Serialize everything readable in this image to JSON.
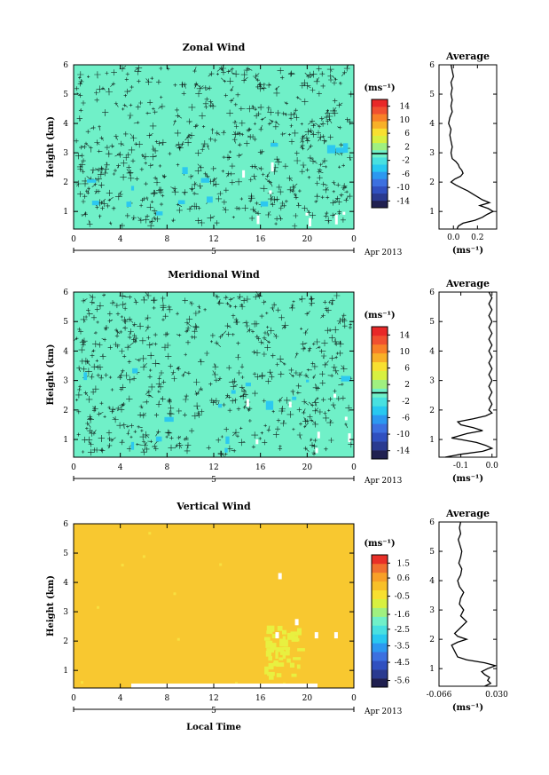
{
  "shared": {
    "month_label": "Apr 2013",
    "day_label": "5",
    "x_tick_labels": [
      "0",
      "4",
      "8",
      "12",
      "16",
      "20",
      "0"
    ],
    "height_tick_labels": [
      "1",
      "2",
      "3",
      "4",
      "5",
      "6"
    ],
    "ylabel": "Height (km)",
    "xlabel": "Local Time",
    "units_label": "(ms⁻¹)",
    "avg_title": "Average",
    "avg_unit": "(ms⁻¹)"
  },
  "chart_data": [
    {
      "id": "zonal",
      "type": "heatmap",
      "title": "Zonal Wind",
      "x_range": [
        0,
        24
      ],
      "y_range": [
        0.4,
        6
      ],
      "dominant_value_range": [
        -2,
        2
      ],
      "contour_lines": true,
      "colorbar_ticks": [
        "14",
        "10",
        "6",
        "2",
        "-2",
        "-6",
        "-10",
        "-14"
      ],
      "colorbar_range": [
        -16,
        16
      ],
      "colorbar_marker": 0,
      "colors": [
        "#202050",
        "#2a3a90",
        "#3050c0",
        "#3c70e0",
        "#2c98f0",
        "#28c8f0",
        "#48e0e0",
        "#70f0c8",
        "#a0f080",
        "#d8f040",
        "#f8e030",
        "#f8b028",
        "#f88028",
        "#f05030",
        "#e82828"
      ],
      "field_color": "#70f0c8",
      "avg_profile": {
        "x_ticks": [
          "0.0",
          "0.2"
        ],
        "xlim": [
          -0.12,
          0.36
        ],
        "tick_values": [
          0,
          0.2
        ],
        "points": [
          [
            0.03,
            0.4
          ],
          [
            0.04,
            0.5
          ],
          [
            0.08,
            0.6
          ],
          [
            0.18,
            0.7
          ],
          [
            0.24,
            0.8
          ],
          [
            0.28,
            0.9
          ],
          [
            0.33,
            1.0
          ],
          [
            0.29,
            1.1
          ],
          [
            0.22,
            1.2
          ],
          [
            0.3,
            1.3
          ],
          [
            0.24,
            1.4
          ],
          [
            0.2,
            1.5
          ],
          [
            0.16,
            1.6
          ],
          [
            0.12,
            1.7
          ],
          [
            0.07,
            1.8
          ],
          [
            0.02,
            1.9
          ],
          [
            -0.02,
            2.0
          ],
          [
            0.01,
            2.1
          ],
          [
            0.06,
            2.2
          ],
          [
            0.08,
            2.3
          ],
          [
            0.07,
            2.4
          ],
          [
            0.05,
            2.5
          ],
          [
            0.04,
            2.6
          ],
          [
            0.02,
            2.7
          ],
          [
            -0.01,
            2.8
          ],
          [
            -0.02,
            3.0
          ],
          [
            -0.01,
            3.2
          ],
          [
            -0.02,
            3.4
          ],
          [
            -0.03,
            3.6
          ],
          [
            -0.02,
            3.8
          ],
          [
            -0.04,
            4.0
          ],
          [
            -0.03,
            4.2
          ],
          [
            -0.01,
            4.4
          ],
          [
            -0.02,
            4.6
          ],
          [
            -0.01,
            4.8
          ],
          [
            -0.02,
            5.0
          ],
          [
            -0.01,
            5.2
          ],
          [
            -0.02,
            5.4
          ],
          [
            0.0,
            5.6
          ],
          [
            -0.01,
            5.8
          ],
          [
            -0.02,
            6.0
          ]
        ]
      }
    },
    {
      "id": "meridional",
      "type": "heatmap",
      "title": "Meridional Wind",
      "x_range": [
        0,
        24
      ],
      "y_range": [
        0.4,
        6
      ],
      "dominant_value_range": [
        -2,
        2
      ],
      "contour_lines": true,
      "colorbar_ticks": [
        "14",
        "10",
        "6",
        "2",
        "-2",
        "-6",
        "-10",
        "-14"
      ],
      "colorbar_range": [
        -16,
        16
      ],
      "colorbar_marker": 0,
      "colors": [
        "#202050",
        "#2a3a90",
        "#3050c0",
        "#3c70e0",
        "#2c98f0",
        "#28c8f0",
        "#48e0e0",
        "#70f0c8",
        "#a0f080",
        "#d8f040",
        "#f8e030",
        "#f8b028",
        "#f88028",
        "#f05030",
        "#e82828"
      ],
      "field_color": "#70f0c8",
      "avg_profile": {
        "x_ticks": [
          "-0.1",
          "0.0"
        ],
        "xlim": [
          -0.17,
          0.015
        ],
        "tick_values": [
          -0.1,
          0.0
        ],
        "points": [
          [
            -0.15,
            0.4
          ],
          [
            -0.1,
            0.5
          ],
          [
            -0.03,
            0.6
          ],
          [
            0.0,
            0.7
          ],
          [
            -0.02,
            0.8
          ],
          [
            -0.05,
            0.9
          ],
          [
            -0.1,
            1.0
          ],
          [
            -0.13,
            1.05
          ],
          [
            -0.08,
            1.2
          ],
          [
            -0.03,
            1.3
          ],
          [
            -0.06,
            1.4
          ],
          [
            -0.1,
            1.5
          ],
          [
            -0.11,
            1.6
          ],
          [
            -0.06,
            1.7
          ],
          [
            -0.02,
            1.8
          ],
          [
            0.0,
            1.9
          ],
          [
            -0.01,
            2.0
          ],
          [
            0.0,
            2.2
          ],
          [
            -0.01,
            2.4
          ],
          [
            0.0,
            2.6
          ],
          [
            -0.01,
            2.8
          ],
          [
            0.0,
            3.0
          ],
          [
            -0.01,
            3.2
          ],
          [
            0.0,
            3.4
          ],
          [
            -0.01,
            3.6
          ],
          [
            0.0,
            3.8
          ],
          [
            -0.01,
            4.0
          ],
          [
            0.0,
            4.2
          ],
          [
            -0.01,
            4.4
          ],
          [
            0.0,
            4.6
          ],
          [
            -0.01,
            4.8
          ],
          [
            0.0,
            5.0
          ],
          [
            -0.01,
            5.2
          ],
          [
            0.0,
            5.4
          ],
          [
            -0.01,
            5.6
          ],
          [
            0.0,
            5.8
          ],
          [
            -0.01,
            6.0
          ]
        ]
      }
    },
    {
      "id": "vertical",
      "type": "heatmap",
      "title": "Vertical Wind",
      "x_range": [
        0,
        24
      ],
      "y_range": [
        0.4,
        6
      ],
      "dominant_value_range": [
        -0.6,
        -0.2
      ],
      "contour_lines": false,
      "colorbar_ticks": [
        "1.5",
        "0.6",
        "-0.5",
        "-1.6",
        "-2.5",
        "-3.5",
        "-4.5",
        "-5.6"
      ],
      "colorbar_range": [
        -6,
        2
      ],
      "colors": [
        "#202050",
        "#2a3a90",
        "#3050c0",
        "#3c70e0",
        "#2c98f0",
        "#28c8f0",
        "#48e0e0",
        "#70f0c8",
        "#a0f080",
        "#d8f040",
        "#f8e030",
        "#f8c028",
        "#f8a028",
        "#f07030",
        "#e83028"
      ],
      "field_color": "#f8c830",
      "avg_profile": {
        "x_ticks": [
          "-0.066",
          "0.030"
        ],
        "xlim": [
          -0.066,
          0.03
        ],
        "tick_values": [
          -0.066,
          0.03
        ],
        "points": [
          [
            0.01,
            0.4
          ],
          [
            0.02,
            0.5
          ],
          [
            0.015,
            0.6
          ],
          [
            0.018,
            0.7
          ],
          [
            0.01,
            0.8
          ],
          [
            0.005,
            0.9
          ],
          [
            0.015,
            1.0
          ],
          [
            0.028,
            1.1
          ],
          [
            0.01,
            1.2
          ],
          [
            -0.02,
            1.3
          ],
          [
            -0.035,
            1.4
          ],
          [
            -0.04,
            1.6
          ],
          [
            -0.045,
            1.8
          ],
          [
            -0.035,
            1.9
          ],
          [
            -0.02,
            2.0
          ],
          [
            -0.035,
            2.1
          ],
          [
            -0.04,
            2.2
          ],
          [
            -0.03,
            2.4
          ],
          [
            -0.02,
            2.6
          ],
          [
            -0.03,
            2.8
          ],
          [
            -0.025,
            3.0
          ],
          [
            -0.032,
            3.2
          ],
          [
            -0.03,
            3.4
          ],
          [
            -0.025,
            3.6
          ],
          [
            -0.032,
            3.8
          ],
          [
            -0.035,
            4.0
          ],
          [
            -0.03,
            4.2
          ],
          [
            -0.028,
            4.4
          ],
          [
            -0.033,
            4.6
          ],
          [
            -0.03,
            4.8
          ],
          [
            -0.028,
            5.0
          ],
          [
            -0.031,
            5.2
          ],
          [
            -0.034,
            5.4
          ],
          [
            -0.03,
            5.6
          ],
          [
            -0.032,
            5.8
          ],
          [
            -0.03,
            6.0
          ]
        ]
      }
    }
  ]
}
